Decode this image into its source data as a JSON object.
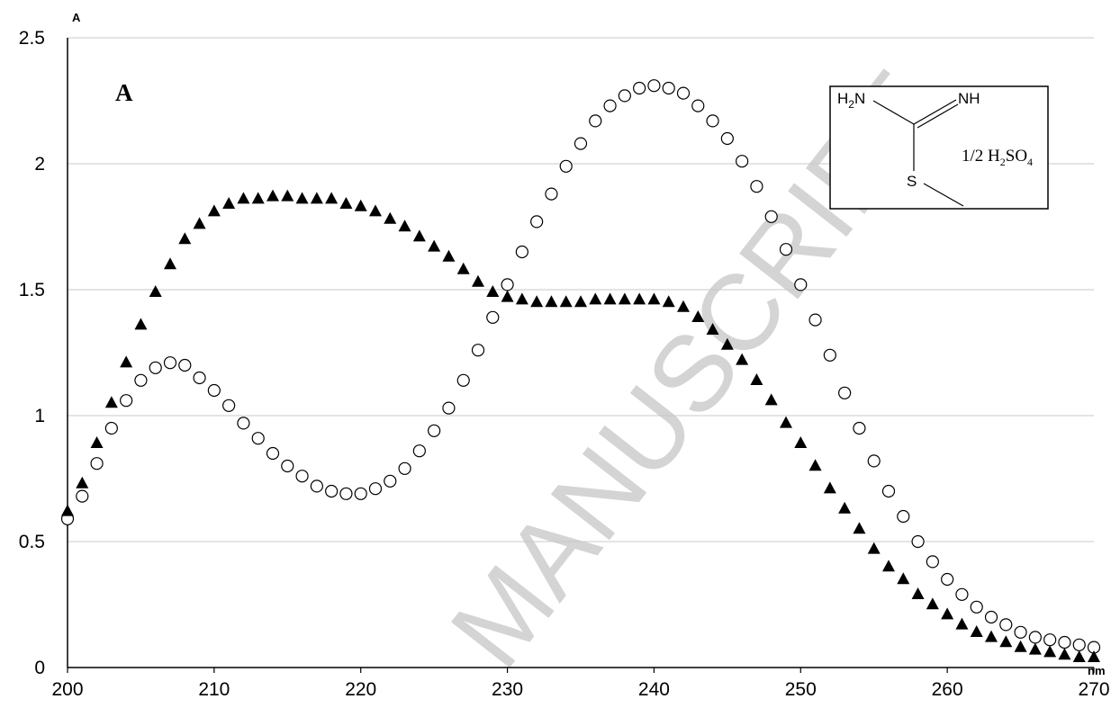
{
  "chart_data": {
    "type": "scatter",
    "title": "",
    "xlabel": "nm",
    "ylabel": "A",
    "panel_label": "A",
    "xlim": [
      200,
      270
    ],
    "ylim": [
      0,
      2.5
    ],
    "xticks": [
      "200",
      "210",
      "220",
      "230",
      "240",
      "250",
      "260",
      "270"
    ],
    "yticks": [
      "0",
      "0.5",
      "1",
      "1.5",
      "2",
      "2.5"
    ],
    "grid": "horizontal",
    "x": [
      200,
      201,
      202,
      203,
      204,
      205,
      206,
      207,
      208,
      209,
      210,
      211,
      212,
      213,
      214,
      215,
      216,
      217,
      218,
      219,
      220,
      221,
      222,
      223,
      224,
      225,
      226,
      227,
      228,
      229,
      230,
      231,
      232,
      233,
      234,
      235,
      236,
      237,
      238,
      239,
      240,
      241,
      242,
      243,
      244,
      245,
      246,
      247,
      248,
      249,
      250,
      251,
      252,
      253,
      254,
      255,
      256,
      257,
      258,
      259,
      260,
      261,
      262,
      263,
      264,
      265,
      266,
      267,
      268,
      269,
      270
    ],
    "series": [
      {
        "marker": "filled-triangle",
        "color": "#000000",
        "values": [
          0.62,
          0.73,
          0.89,
          1.05,
          1.21,
          1.36,
          1.49,
          1.6,
          1.7,
          1.76,
          1.81,
          1.84,
          1.86,
          1.86,
          1.87,
          1.87,
          1.86,
          1.86,
          1.86,
          1.84,
          1.83,
          1.81,
          1.78,
          1.75,
          1.71,
          1.67,
          1.63,
          1.58,
          1.53,
          1.49,
          1.47,
          1.46,
          1.45,
          1.45,
          1.45,
          1.45,
          1.46,
          1.46,
          1.46,
          1.46,
          1.46,
          1.45,
          1.43,
          1.39,
          1.34,
          1.28,
          1.22,
          1.14,
          1.06,
          0.97,
          0.89,
          0.8,
          0.71,
          0.63,
          0.55,
          0.47,
          0.4,
          0.35,
          0.29,
          0.25,
          0.21,
          0.17,
          0.14,
          0.12,
          0.1,
          0.08,
          0.07,
          0.06,
          0.05,
          0.04,
          0.04
        ]
      },
      {
        "marker": "open-circle",
        "color": "#000000",
        "values": [
          0.59,
          0.68,
          0.81,
          0.95,
          1.06,
          1.14,
          1.19,
          1.21,
          1.2,
          1.15,
          1.1,
          1.04,
          0.97,
          0.91,
          0.85,
          0.8,
          0.76,
          0.72,
          0.7,
          0.69,
          0.69,
          0.71,
          0.74,
          0.79,
          0.86,
          0.94,
          1.03,
          1.14,
          1.26,
          1.39,
          1.52,
          1.65,
          1.77,
          1.88,
          1.99,
          2.08,
          2.17,
          2.23,
          2.27,
          2.3,
          2.31,
          2.3,
          2.28,
          2.23,
          2.17,
          2.1,
          2.01,
          1.91,
          1.79,
          1.66,
          1.52,
          1.38,
          1.24,
          1.09,
          0.95,
          0.82,
          0.7,
          0.6,
          0.5,
          0.42,
          0.35,
          0.29,
          0.24,
          0.2,
          0.17,
          0.14,
          0.12,
          0.11,
          0.1,
          0.09,
          0.08
        ]
      }
    ]
  },
  "inset": {
    "amine_label": "H",
    "amine_sub": "2",
    "amine_tail": "N",
    "imine_label": "NH",
    "sulfur_label": "S",
    "salt_prefix": "1/2 H",
    "salt_sub1": "2",
    "salt_mid": "SO",
    "salt_sub2": "4"
  },
  "watermark": "MANUSCRIPT"
}
